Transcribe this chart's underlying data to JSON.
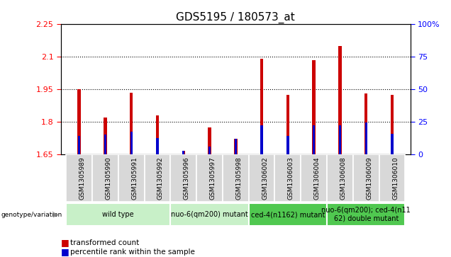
{
  "title": "GDS5195 / 180573_at",
  "samples": [
    "GSM1305989",
    "GSM1305990",
    "GSM1305991",
    "GSM1305992",
    "GSM1305996",
    "GSM1305997",
    "GSM1305998",
    "GSM1306002",
    "GSM1306003",
    "GSM1306004",
    "GSM1306008",
    "GSM1306009",
    "GSM1306010"
  ],
  "red_values": [
    1.95,
    1.82,
    1.935,
    1.83,
    1.665,
    1.775,
    1.72,
    2.09,
    1.925,
    2.085,
    2.15,
    1.93,
    1.925
  ],
  "blue_values": [
    1.735,
    1.74,
    1.755,
    1.725,
    1.665,
    1.685,
    1.72,
    1.785,
    1.735,
    1.785,
    1.785,
    1.795,
    1.745
  ],
  "ylim_left": [
    1.65,
    2.25
  ],
  "yticks_left": [
    1.65,
    1.8,
    1.95,
    2.1,
    2.25
  ],
  "ylim_right": [
    0,
    100
  ],
  "yticks_right": [
    0,
    25,
    50,
    75,
    100
  ],
  "ytick_labels_right": [
    "0",
    "25",
    "50",
    "75",
    "100%"
  ],
  "groups": [
    {
      "label": "wild type",
      "indices": [
        0,
        1,
        2,
        3
      ],
      "color": "#c8f0c8"
    },
    {
      "label": "nuo-6(qm200) mutant",
      "indices": [
        4,
        5,
        6
      ],
      "color": "#c8f0c8"
    },
    {
      "label": "ced-4(n1162) mutant",
      "indices": [
        7,
        8,
        9
      ],
      "color": "#50c850"
    },
    {
      "label": "nuo-6(qm200); ced-4(n11\n62) double mutant",
      "indices": [
        10,
        11,
        12
      ],
      "color": "#50c850"
    }
  ],
  "genotype_label": "genotype/variation",
  "legend_red": "transformed count",
  "legend_blue": "percentile rank within the sample",
  "red_bar_width": 0.12,
  "blue_bar_width": 0.09,
  "bar_color_red": "#cc0000",
  "bar_color_blue": "#0000cc",
  "sample_bg_color": "#d8d8d8",
  "plot_bg": "#ffffff",
  "title_fontsize": 11,
  "tick_fontsize": 8,
  "sample_fontsize": 6.5,
  "group_fontsize": 7,
  "legend_fontsize": 7.5
}
